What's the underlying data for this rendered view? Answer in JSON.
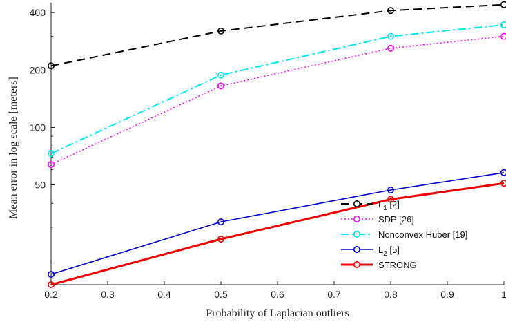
{
  "chart_data": {
    "type": "line",
    "title": "",
    "xlabel": "Probability of Laplacian outliers",
    "ylabel": "Mean error in log scale [meters]",
    "xlim": [
      0.2,
      1.0
    ],
    "ylim": [
      15,
      450
    ],
    "yscale": "log",
    "x_ticks": [
      "0.2",
      "0.3",
      "0.4",
      "0.5",
      "0.6",
      "0.7",
      "0.8",
      "0.9",
      "1"
    ],
    "y_ticks": [
      "50",
      "100",
      "200",
      "400"
    ],
    "grid": false,
    "legend_position": "bottom-right",
    "x": [
      0.2,
      0.5,
      0.8,
      1.0
    ],
    "series": [
      {
        "name": "L",
        "sub": "1",
        "suffix": " [2]",
        "color": "#000000",
        "dash": "12,7",
        "width": 2,
        "values": [
          210,
          320,
          410,
          440
        ]
      },
      {
        "name": "SDP [26]",
        "color": "#ff00ff",
        "dash": "2,3",
        "width": 1.6,
        "values": [
          64,
          165,
          260,
          300
        ]
      },
      {
        "name": "Nonconvex Huber [19]",
        "color": "#00e5ee",
        "dash": "12,4,3,4",
        "width": 2,
        "values": [
          73,
          188,
          300,
          345
        ]
      },
      {
        "name": "L",
        "sub": "2",
        "suffix": " [5]",
        "color": "#0000cc",
        "dash": "",
        "width": 1.6,
        "values": [
          17,
          32,
          47,
          58
        ]
      },
      {
        "name": "STRONG",
        "color": "#ee0000",
        "dash": "",
        "width": 3,
        "values": [
          15,
          26,
          42,
          51
        ]
      }
    ]
  }
}
